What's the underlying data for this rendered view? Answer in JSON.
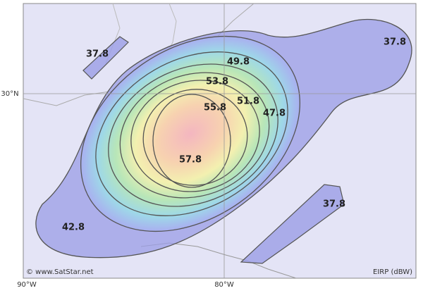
{
  "map": {
    "contour_labels": [
      "37.8",
      "37.8",
      "49.8",
      "53.8",
      "51.8",
      "55.8",
      "47.8",
      "57.8",
      "37.8",
      "42.8"
    ],
    "axis_labels": {
      "lon_left": "90°W",
      "lon_right": "80°W",
      "lat": "30°N"
    },
    "copyright": "© www.SatStar.net",
    "unit": "EIRP (dBW)"
  }
}
